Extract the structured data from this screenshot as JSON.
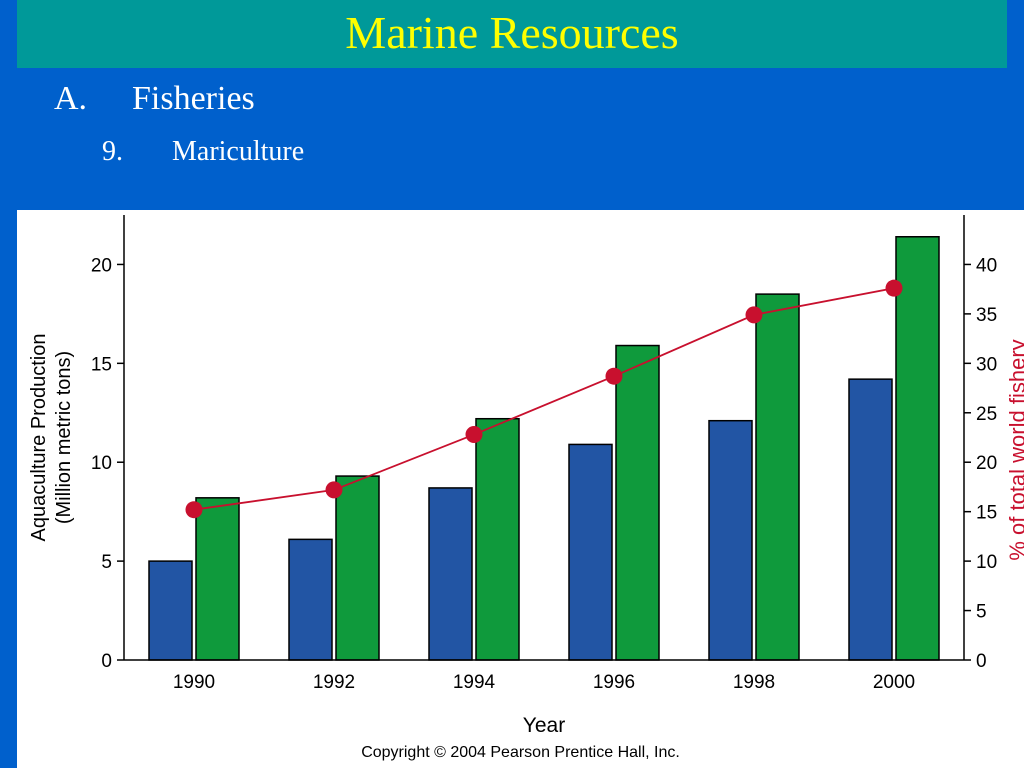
{
  "slide": {
    "title": "Marine Resources",
    "outline": {
      "level1": {
        "marker": "A.",
        "text": "Fisheries"
      },
      "level2": {
        "marker": "9.",
        "text": "Mariculture"
      }
    },
    "colors": {
      "background": "#0060cc",
      "title_bar": "#009999",
      "title_text": "#ffff00",
      "outline_text": "#ffffff"
    }
  },
  "chart_data": {
    "type": "bar",
    "categories": [
      "1990",
      "1992",
      "1994",
      "1996",
      "1998",
      "2000"
    ],
    "series": [
      {
        "kind": "bar",
        "axis": "left",
        "color": "#2255a4",
        "values": [
          5.0,
          6.1,
          8.7,
          10.9,
          12.1,
          14.2
        ]
      },
      {
        "kind": "bar",
        "axis": "left",
        "color": "#0f9a3c",
        "values": [
          8.2,
          9.3,
          12.2,
          15.9,
          18.5,
          21.4
        ]
      },
      {
        "kind": "line",
        "axis": "right",
        "color": "#c8102e",
        "values": [
          15.2,
          17.2,
          22.8,
          28.7,
          34.9,
          37.6
        ]
      }
    ],
    "xlabel": "Year",
    "ylabel": [
      "Aquaculture Production",
      "(Million metric tons)"
    ],
    "y2label": "% of total world fishery",
    "ylim": [
      0,
      22.5
    ],
    "y2lim": [
      0,
      45
    ],
    "yticks": [
      "0",
      "5",
      "10",
      "15",
      "20"
    ],
    "y2ticks": [
      "0",
      "5",
      "10",
      "15",
      "20",
      "25",
      "30",
      "35",
      "40"
    ],
    "grid": false,
    "copyright": "Copyright © 2004 Pearson Prentice Hall, Inc."
  }
}
